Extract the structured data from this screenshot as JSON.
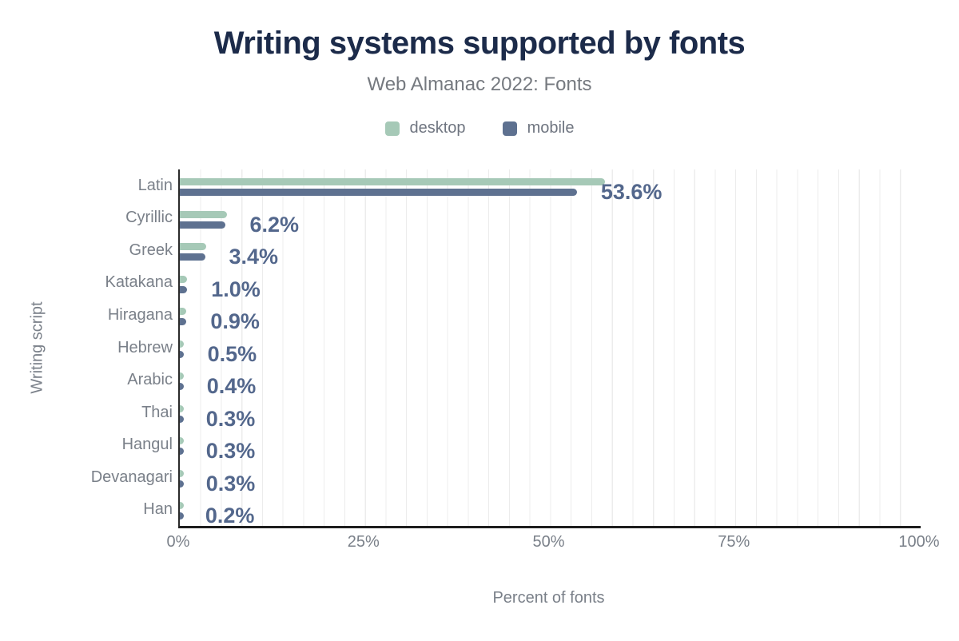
{
  "header": {
    "title": "Writing systems supported by fonts",
    "subtitle": "Web Almanac 2022: Fonts"
  },
  "legend": [
    {
      "label": "desktop",
      "color": "#a6c9b7"
    },
    {
      "label": "mobile",
      "color": "#5e7190"
    }
  ],
  "axes": {
    "x_label": "Percent of fonts",
    "y_label": "Writing script",
    "x_ticks": [
      "0%",
      "25%",
      "50%",
      "75%",
      "100%"
    ],
    "x_tick_pos": [
      0,
      25,
      50,
      75,
      100
    ]
  },
  "colors": {
    "title": "#1c2b4a",
    "subtitle_text": "#75797f",
    "axis_text": "#7a8089",
    "value_label": "#53678c",
    "desktop_bar": "#a6c9b7",
    "mobile_bar": "#5e7190",
    "gridline": "#ececec",
    "axis_line": "#2b2b2b",
    "background": "#ffffff"
  },
  "chart_data": {
    "type": "bar",
    "orientation": "horizontal",
    "title": "Writing systems supported by fonts",
    "subtitle": "Web Almanac 2022: Fonts",
    "xlabel": "Percent of fonts",
    "ylabel": "Writing script",
    "xlim": [
      0,
      100
    ],
    "grid": true,
    "legend_position": "top",
    "categories": [
      "Latin",
      "Cyrillic",
      "Greek",
      "Katakana",
      "Hiragana",
      "Hebrew",
      "Arabic",
      "Thai",
      "Hangul",
      "Devanagari",
      "Han"
    ],
    "series": [
      {
        "name": "desktop",
        "color": "#a6c9b7",
        "values": [
          57.4,
          6.4,
          3.6,
          1.0,
          0.9,
          0.5,
          0.4,
          0.3,
          0.3,
          0.3,
          0.2
        ]
      },
      {
        "name": "mobile",
        "color": "#5e7190",
        "values": [
          53.6,
          6.2,
          3.4,
          1.0,
          0.9,
          0.5,
          0.4,
          0.3,
          0.3,
          0.3,
          0.2
        ]
      }
    ],
    "value_labels": [
      "53.6%",
      "6.2%",
      "3.4%",
      "1.0%",
      "0.9%",
      "0.5%",
      "0.4%",
      "0.3%",
      "0.3%",
      "0.3%",
      "0.2%"
    ],
    "value_label_series": "mobile"
  }
}
